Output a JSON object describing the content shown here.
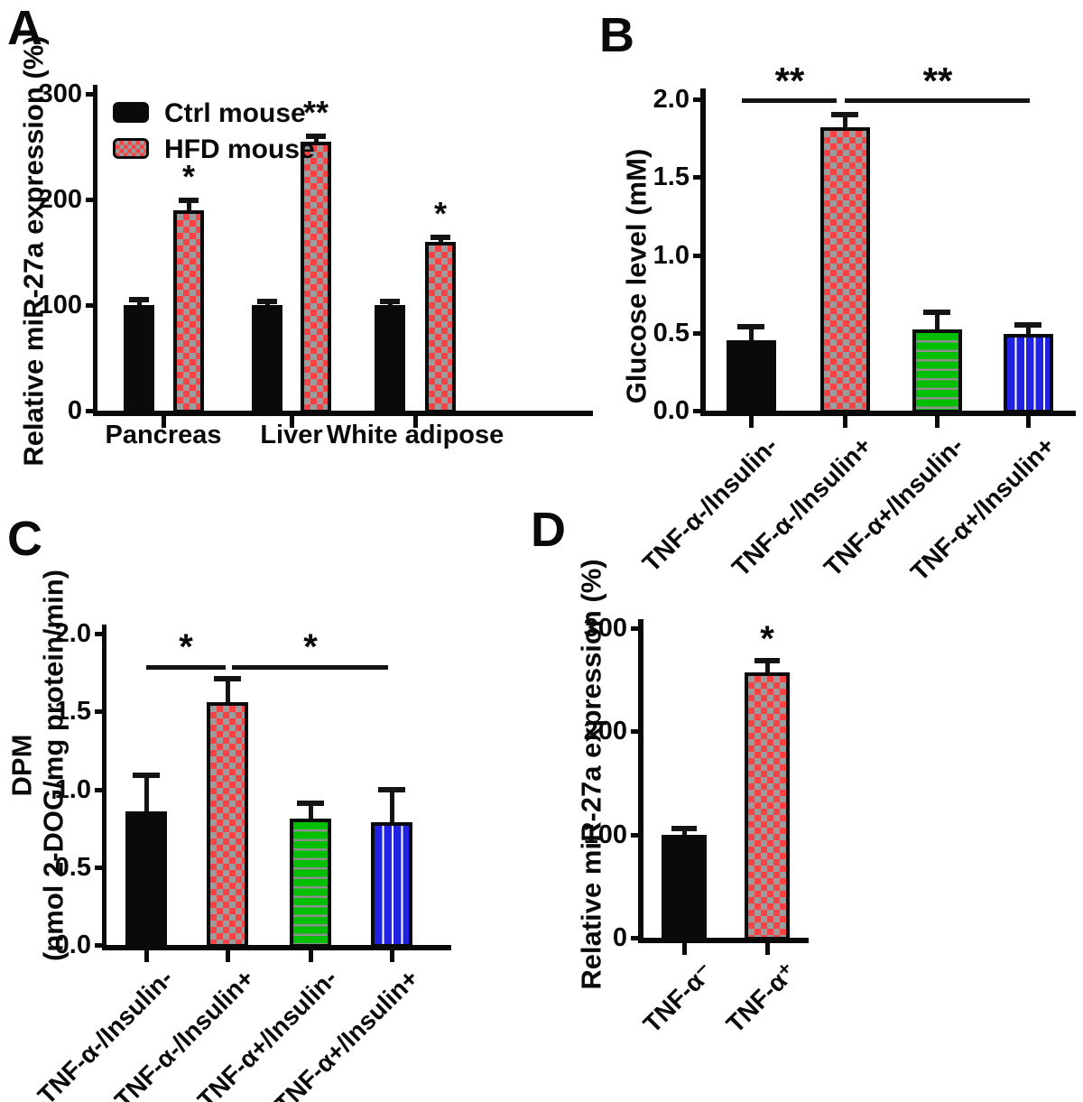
{
  "colors": {
    "bar_black": "#0a0a0a",
    "checker_red": "#fa4144",
    "checker_gray": "#9c9c9c",
    "stripe_green": "#00be00",
    "stripe_green_line": "#8f8f8f",
    "stripe_blue": "#2222e2",
    "stripe_blue_line": "#ffffff",
    "axis": "#0a0a0a",
    "text": "#0a0a0a"
  },
  "chart_data": [
    {
      "panel_letter": "A",
      "type": "bar",
      "title": "",
      "ylabel": "Relative miR-27a expression (%)",
      "xlabel": "",
      "ylim": [
        0,
        300
      ],
      "yticks": [
        0,
        100,
        200,
        300
      ],
      "ytick_labels": [
        "0",
        "100",
        "200",
        "300"
      ],
      "grid": false,
      "legend_position": "top-left-inside",
      "categories": [
        "Pancreas",
        "Liver",
        "White adipose"
      ],
      "series": [
        {
          "name": "Ctrl mouse",
          "pattern": "solid-black",
          "values": [
            100,
            100,
            100
          ],
          "errors": [
            5,
            3,
            3
          ],
          "sig": [
            "",
            "",
            ""
          ]
        },
        {
          "name": "HFD mouse",
          "pattern": "checker-red",
          "values": [
            190,
            255,
            160
          ],
          "errors": [
            9,
            5,
            4
          ],
          "sig": [
            "*",
            "**",
            "*"
          ]
        }
      ]
    },
    {
      "panel_letter": "B",
      "type": "bar",
      "title": "",
      "ylabel": "Glucose level (mM)",
      "xlabel": "",
      "ylim": [
        0,
        2.0
      ],
      "yticks": [
        0,
        0.5,
        1.0,
        1.5,
        2.0
      ],
      "ytick_labels": [
        "0.0",
        "0.5",
        "1.0",
        "1.5",
        "2.0"
      ],
      "grid": false,
      "bars": [
        {
          "label": "TNF-α-/Insulin-",
          "pattern": "solid-black",
          "value": 0.45,
          "error": 0.09,
          "sig": ""
        },
        {
          "label": "TNF-α-/Insulin+",
          "pattern": "checker-red",
          "value": 1.82,
          "error": 0.08,
          "sig": ""
        },
        {
          "label": "TNF-α+/Insulin-",
          "pattern": "hstripe-green",
          "value": 0.52,
          "error": 0.11,
          "sig": ""
        },
        {
          "label": "TNF-α+/Insulin+",
          "pattern": "vstripe-blue",
          "value": 0.49,
          "error": 0.06,
          "sig": ""
        }
      ],
      "sig_lines": [
        {
          "text": "**",
          "from": "TNF-α-/Insulin-",
          "to": "TNF-α-/Insulin+"
        },
        {
          "text": "**",
          "from": "TNF-α-/Insulin+",
          "to": "TNF-α+/Insulin+"
        }
      ]
    },
    {
      "panel_letter": "C",
      "type": "bar",
      "title": "",
      "ylabel": "DPM\n(nmol 2-DOG/mg protein/min)",
      "xlabel": "",
      "ylim": [
        0,
        2.0
      ],
      "yticks": [
        0,
        0.5,
        1.0,
        1.5,
        2.0
      ],
      "ytick_labels": [
        "0.0",
        "0.5",
        "1.0",
        "1.5",
        "2.0"
      ],
      "grid": false,
      "bars": [
        {
          "label": "TNF-α-/Insulin-",
          "pattern": "solid-black",
          "value": 0.86,
          "error": 0.23,
          "sig": ""
        },
        {
          "label": "TNF-α-/Insulin+",
          "pattern": "checker-red",
          "value": 1.56,
          "error": 0.15,
          "sig": ""
        },
        {
          "label": "TNF-α+/Insulin-",
          "pattern": "hstripe-green",
          "value": 0.81,
          "error": 0.1,
          "sig": ""
        },
        {
          "label": "TNF-α+/Insulin+",
          "pattern": "vstripe-blue",
          "value": 0.79,
          "error": 0.21,
          "sig": ""
        }
      ],
      "sig_lines": [
        {
          "text": "*",
          "from": "TNF-α-/Insulin-",
          "to": "TNF-α-/Insulin+"
        },
        {
          "text": "*",
          "from": "TNF-α-/Insulin+",
          "to": "TNF-α+/Insulin+"
        }
      ]
    },
    {
      "panel_letter": "D",
      "type": "bar",
      "title": "",
      "ylabel": "Relative miR-27a expression (%)",
      "xlabel": "",
      "ylim": [
        0,
        300
      ],
      "yticks": [
        0,
        100,
        200,
        300
      ],
      "ytick_labels": [
        "0",
        "100",
        "200",
        "300"
      ],
      "grid": false,
      "bars": [
        {
          "label": "TNF-α⁻",
          "pattern": "solid-black",
          "value": 100,
          "error": 6,
          "sig": ""
        },
        {
          "label": "TNF-α⁺",
          "pattern": "checker-red",
          "value": 257,
          "error": 12,
          "sig": "*"
        }
      ]
    }
  ]
}
